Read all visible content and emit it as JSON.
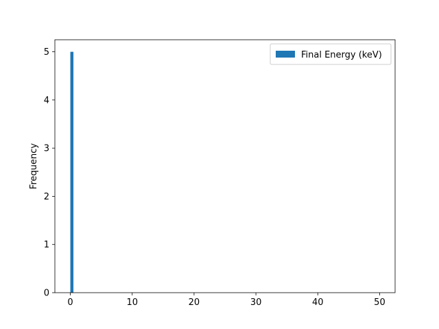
{
  "chart_data": {
    "type": "bar",
    "title": "",
    "xlabel": "",
    "ylabel": "Frequency",
    "xlim": [
      -2.5,
      52.5
    ],
    "ylim": [
      0,
      5.25
    ],
    "xticks": [
      0,
      10,
      20,
      30,
      40,
      50
    ],
    "yticks": [
      0,
      1,
      2,
      3,
      4,
      5
    ],
    "grid": false,
    "legend_position": "top-right",
    "series": [
      {
        "name": "Final Energy (keV)",
        "color": "#1f77b4",
        "bins": [
          {
            "x0": 0.0,
            "x1": 0.5,
            "value": 5
          }
        ]
      }
    ]
  }
}
